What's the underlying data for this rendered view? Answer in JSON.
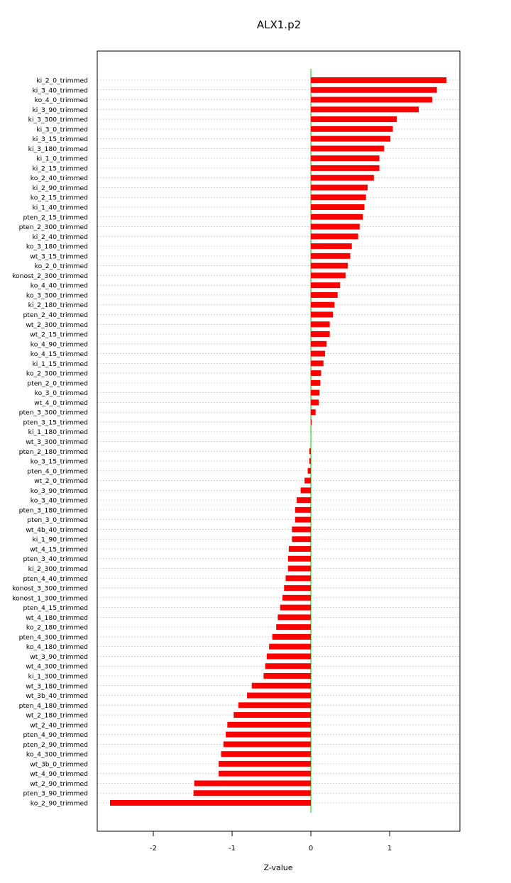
{
  "chart_data": {
    "type": "bar",
    "orientation": "horizontal",
    "title": "ALX1.p2",
    "xlabel": "Z-value",
    "ylabel": "",
    "xlim": [
      -2.62,
      1.9
    ],
    "xticks": [
      -2,
      -1,
      0,
      1
    ],
    "grid": true,
    "bar_color": "#ff0000",
    "zero_line_color": "#00cc00",
    "categories": [
      "ki_2_0_trimmed",
      "ki_3_40_trimmed",
      "ko_4_0_trimmed",
      "ki_3_90_trimmed",
      "ki_3_300_trimmed",
      "ki_3_0_trimmed",
      "ki_3_15_trimmed",
      "ki_3_180_trimmed",
      "ki_1_0_trimmed",
      "ki_2_15_trimmed",
      "ko_2_40_trimmed",
      "ki_2_90_trimmed",
      "ko_2_15_trimmed",
      "ki_1_40_trimmed",
      "pten_2_15_trimmed",
      "pten_2_300_trimmed",
      "ki_2_40_trimmed",
      "ko_3_180_trimmed",
      "wt_3_15_trimmed",
      "ko_2_0_trimmed",
      "konost_2_300_trimmed",
      "ko_4_40_trimmed",
      "ko_3_300_trimmed",
      "ki_2_180_trimmed",
      "pten_2_40_trimmed",
      "wt_2_300_trimmed",
      "wt_2_15_trimmed",
      "ko_4_90_trimmed",
      "ko_4_15_trimmed",
      "ki_1_15_trimmed",
      "ko_2_300_trimmed",
      "pten_2_0_trimmed",
      "ko_3_0_trimmed",
      "wt_4_0_trimmed",
      "pten_3_300_trimmed",
      "pten_3_15_trimmed",
      "ki_1_180_trimmed",
      "wt_3_300_trimmed",
      "pten_2_180_trimmed",
      "ko_3_15_trimmed",
      "pten_4_0_trimmed",
      "wt_2_0_trimmed",
      "ko_3_90_trimmed",
      "ko_3_40_trimmed",
      "pten_3_180_trimmed",
      "pten_3_0_trimmed",
      "wt_4b_40_trimmed",
      "ki_1_90_trimmed",
      "wt_4_15_trimmed",
      "pten_3_40_trimmed",
      "ki_2_300_trimmed",
      "pten_4_40_trimmed",
      "konost_3_300_trimmed",
      "konost_1_300_trimmed",
      "pten_4_15_trimmed",
      "wt_4_180_trimmed",
      "ko_2_180_trimmed",
      "pten_4_300_trimmed",
      "ko_4_180_trimmed",
      "wt_3_90_trimmed",
      "wt_4_300_trimmed",
      "ki_1_300_trimmed",
      "wt_3_180_trimmed",
      "wt_3b_40_trimmed",
      "pten_4_180_trimmed",
      "wt_2_180_trimmed",
      "wt_2_40_trimmed",
      "pten_4_90_trimmed",
      "pten_2_90_trimmed",
      "ko_4_300_trimmed",
      "wt_3b_0_trimmed",
      "wt_4_90_trimmed",
      "wt_2_90_trimmed",
      "pten_3_90_trimmed",
      "ko_2_90_trimmed"
    ],
    "values": [
      1.72,
      1.6,
      1.54,
      1.37,
      1.09,
      1.04,
      1.01,
      0.93,
      0.87,
      0.87,
      0.8,
      0.72,
      0.7,
      0.68,
      0.66,
      0.62,
      0.6,
      0.52,
      0.5,
      0.47,
      0.44,
      0.37,
      0.34,
      0.3,
      0.28,
      0.24,
      0.24,
      0.2,
      0.18,
      0.16,
      0.13,
      0.12,
      0.11,
      0.1,
      0.06,
      0.01,
      0.0,
      0.0,
      -0.02,
      -0.02,
      -0.04,
      -0.08,
      -0.13,
      -0.18,
      -0.2,
      -0.2,
      -0.24,
      -0.24,
      -0.28,
      -0.29,
      -0.29,
      -0.32,
      -0.34,
      -0.36,
      -0.39,
      -0.42,
      -0.44,
      -0.49,
      -0.53,
      -0.56,
      -0.58,
      -0.6,
      -0.75,
      -0.81,
      -0.92,
      -0.98,
      -1.06,
      -1.08,
      -1.11,
      -1.14,
      -1.17,
      -1.17,
      -1.48,
      -1.49,
      -2.55
    ]
  }
}
